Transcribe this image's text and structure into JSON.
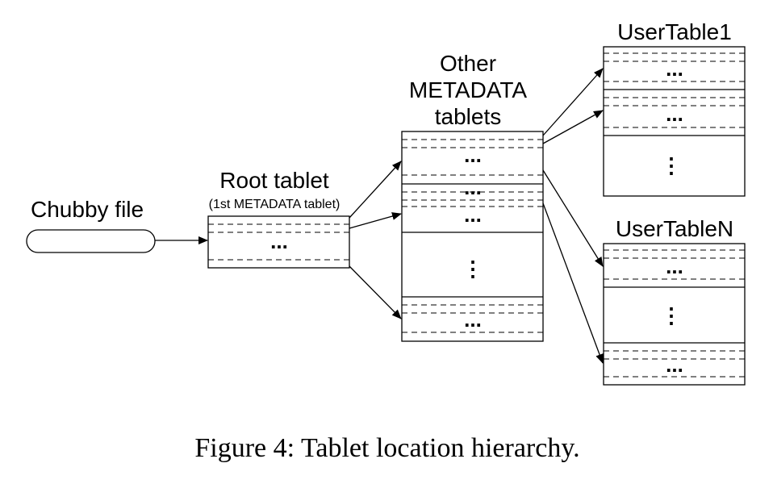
{
  "chubby": {
    "label": "Chubby file"
  },
  "root": {
    "title": "Root tablet",
    "subtitle": "(1st METADATA tablet)",
    "dots": "..."
  },
  "metadata": {
    "title_lines": [
      "Other",
      "METADATA",
      "tablets"
    ],
    "dots1": "...",
    "dots2": "...",
    "dots3": "...",
    "vdots": "⋮",
    "dots4": "..."
  },
  "user1": {
    "title": "UserTable1",
    "dots1": "...",
    "dots2": "...",
    "vdots": "⋮"
  },
  "userN": {
    "title": "UserTableN",
    "dots1": "...",
    "vdots": "⋮",
    "dots2": "..."
  },
  "caption": "Figure 4: Tablet location hierarchy."
}
